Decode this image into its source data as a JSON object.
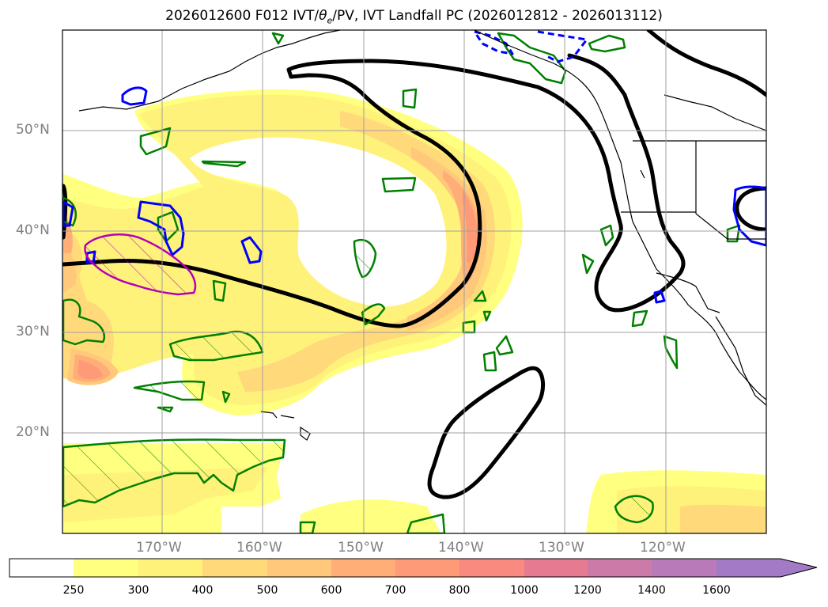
{
  "title": {
    "prefix": "2026012600 F012 IVT/",
    "theta": "θ",
    "theta_sub": "e",
    "suffix": "/PV, IVT Landfall PC (2026012812 - 2026013112)"
  },
  "axes": {
    "lat_labels": [
      "50°N",
      "40°N",
      "30°N",
      "20°N"
    ],
    "lon_labels": [
      "170°W",
      "160°W",
      "150°W",
      "140°W",
      "130°W",
      "120°W"
    ]
  },
  "colorbar": {
    "ticks": [
      "250",
      "300",
      "400",
      "500",
      "600",
      "700",
      "800",
      "1000",
      "1200",
      "1400",
      "1600"
    ],
    "colors": [
      "#ffffff",
      "#ffff80",
      "#fff27a",
      "#ffd97a",
      "#ffc87a",
      "#ffae78",
      "#ff9a78",
      "#f88a80",
      "#e57a90",
      "#cc7aa8",
      "#b87ab8",
      "#a27ac6"
    ]
  },
  "colors": {
    "ivt_contour": "#000000",
    "theta_e": "#008000",
    "pv_pos": "#0000ff",
    "pv_neg": "#b400b4"
  }
}
